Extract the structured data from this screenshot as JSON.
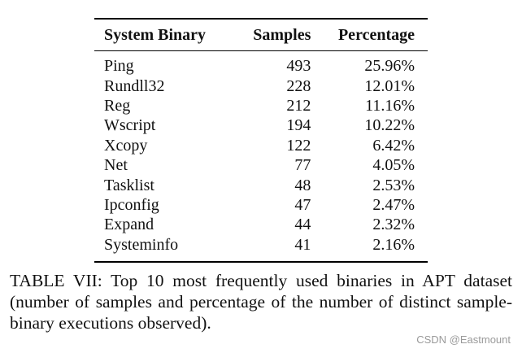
{
  "table": {
    "headers": [
      "System Binary",
      "Samples",
      "Percentage"
    ],
    "rows": [
      {
        "binary": "Ping",
        "samples": "493",
        "percentage": "25.96%"
      },
      {
        "binary": "Rundll32",
        "samples": "228",
        "percentage": "12.01%"
      },
      {
        "binary": "Reg",
        "samples": "212",
        "percentage": "11.16%"
      },
      {
        "binary": "Wscript",
        "samples": "194",
        "percentage": "10.22%"
      },
      {
        "binary": "Xcopy",
        "samples": "122",
        "percentage": "6.42%"
      },
      {
        "binary": "Net",
        "samples": "77",
        "percentage": "4.05%"
      },
      {
        "binary": "Tasklist",
        "samples": "48",
        "percentage": "2.53%"
      },
      {
        "binary": "Ipconfig",
        "samples": "47",
        "percentage": "2.47%"
      },
      {
        "binary": "Expand",
        "samples": "44",
        "percentage": "2.32%"
      },
      {
        "binary": "Systeminfo",
        "samples": "41",
        "percentage": "2.16%"
      }
    ]
  },
  "caption": "TABLE VII: Top 10 most frequently used binaries in APT dataset (number of samples and percentage of the number of distinct sample-binary executions observed).",
  "watermark": "CSDN @Eastmount"
}
